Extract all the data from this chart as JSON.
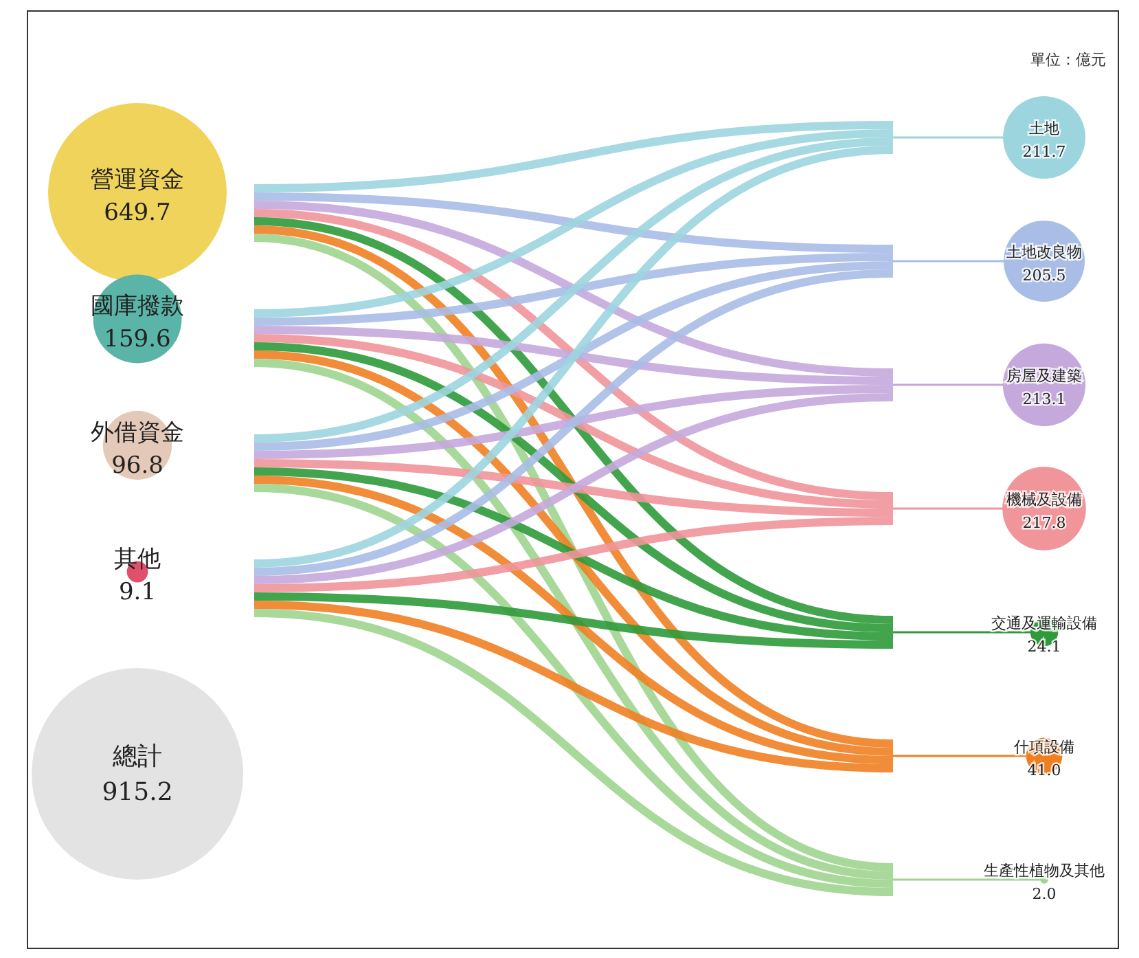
{
  "chart_data": [
    {
      "type": "other",
      "categories": [
        "營運資金",
        "國庫撥款",
        "外借資金",
        "其他"
      ],
      "values": [
        649.7,
        159.6,
        96.8,
        9.1
      ],
      "value_labels": [
        "649.7",
        "159.6",
        "96.8",
        "9.1"
      ],
      "colors": [
        "#f0d35a",
        "#5ab5a8",
        "#e5c9b8",
        "#e0506a"
      ],
      "annotations": [
        "總計",
        "915.2"
      ]
    },
    {
      "type": "other",
      "categories": [
        "土地",
        "土地改良物",
        "房屋及建築",
        "機械及設備",
        "交通及運輸設備",
        "什項設備",
        "生產性植物及其他"
      ],
      "values": [
        211.7,
        205.5,
        213.1,
        217.8,
        24.1,
        41.0,
        2.0
      ],
      "value_labels": [
        "211.7",
        "205.5",
        "213.1",
        "217.8",
        "24.1",
        "41.0",
        "2.0"
      ],
      "colors": [
        "#9dd5df",
        "#a9bde6",
        "#c5a8dc",
        "#f0959a",
        "#2e9a3a",
        "#f07f22",
        "#a0d490"
      ],
      "annotations": [
        "單位：億元"
      ]
    }
  ]
}
